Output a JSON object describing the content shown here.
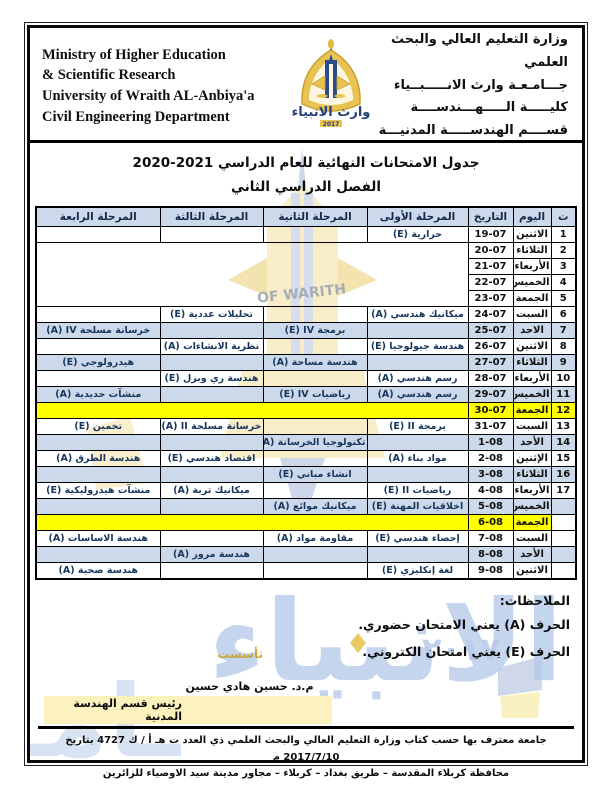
{
  "colors": {
    "row_blue": "#ccd9ea",
    "row_yellow": "#ffff00",
    "signature_highlight": "#fbf2bd",
    "subject_text_navy": "#17365d",
    "watermark_blue": "#b7cbea",
    "watermark_gold": "#f0d98e"
  },
  "header": {
    "english_lines": [
      "Ministry of Higher Education",
      "& Scientific Research",
      "University of Wraith AL-Anbiya'a",
      "Civil Engineering Department"
    ],
    "arabic_lines": [
      "وزارة التعليم العالي والبحث العلمي",
      "جـــامـعـة وارث الانـــــبــياء",
      "كليـــــة الـــــهـــندســــة",
      "قســــم الهندســـــة المدنيـــة"
    ],
    "logo_caption": "وارث الانبياء",
    "logo_year": "2017"
  },
  "title": {
    "line1": "جدول الامتحانات النهائية للعام الدراسي 2021-2020",
    "line2": "الفصل الدراسي الثاني"
  },
  "table": {
    "headers": [
      "ت",
      "اليوم",
      "التاريخ",
      "المرحلة الأولى",
      "المرحلة الثانية",
      "المرحلة الثالثة",
      "المرحلة الرابعة"
    ],
    "rows": [
      {
        "no": "1",
        "day": "الاثنين",
        "date": "19-07",
        "bg": "white",
        "cells": {
          "s1": {
            "n": "حرارية",
            "m": "E"
          }
        }
      },
      {
        "no": "2",
        "day": "الثلاثاء",
        "date": "20-07",
        "bg": "white",
        "span": "start"
      },
      {
        "no": "3",
        "day": "الأربعاء",
        "date": "21-07",
        "bg": "white",
        "span": "skip"
      },
      {
        "no": "4",
        "day": "الخميس",
        "date": "22-07",
        "bg": "white",
        "span": "skip"
      },
      {
        "no": "5",
        "day": "الجمعة",
        "date": "23-07",
        "bg": "white",
        "span": "skip"
      },
      {
        "no": "6",
        "day": "السبت",
        "date": "24-07",
        "bg": "white",
        "cells": {
          "s1": {
            "n": "ميكانيك هندسي",
            "m": "A"
          },
          "s3": {
            "n": "تحليلات عددية",
            "m": "E"
          }
        }
      },
      {
        "no": "7",
        "day": "الاحد",
        "date": "25-07",
        "bg": "blue",
        "cells": {
          "s2": {
            "n": "برمجة IV",
            "m": "E"
          },
          "s4": {
            "n": "خرسانة مسلحة IV",
            "m": "A"
          }
        }
      },
      {
        "no": "8",
        "day": "الاثنين",
        "date": "26-07",
        "bg": "white",
        "cells": {
          "s1": {
            "n": "هندسة جيولوجيا",
            "m": "E"
          },
          "s3": {
            "n": "نظرية الانشاءات",
            "m": "A"
          }
        }
      },
      {
        "no": "9",
        "day": "الثلاثاء",
        "date": "27-07",
        "bg": "blue",
        "cells": {
          "s2": {
            "n": "هندسة مساحة",
            "m": "A"
          },
          "s4": {
            "n": "هيدرولوجي",
            "m": "E"
          }
        }
      },
      {
        "no": "10",
        "day": "الأربعاء",
        "date": "28-07",
        "bg": "white",
        "cells": {
          "s1": {
            "n": "رسم هندسي",
            "m": "A"
          },
          "s3": {
            "n": "هندسة ري وبزل",
            "m": "E"
          }
        }
      },
      {
        "no": "11",
        "day": "الخميس",
        "date": "29-07",
        "bg": "blue",
        "cells": {
          "s1": {
            "n": "رسم هندسي",
            "m": "A"
          },
          "s2": {
            "n": "رياضيات IV",
            "m": "E"
          },
          "s4": {
            "n": "منشآت حديدية",
            "m": "A"
          }
        }
      },
      {
        "no": "12",
        "day": "الجمعة",
        "date": "30-07",
        "bg": "yellow"
      },
      {
        "no": "13",
        "day": "السبت",
        "date": "31-07",
        "bg": "white",
        "cells": {
          "s1": {
            "n": "برمجة II",
            "m": "E"
          },
          "s3": {
            "n": "خرسانة مسلحة II",
            "m": "A"
          },
          "s4": {
            "n": "تخمين",
            "m": "E"
          }
        }
      },
      {
        "no": "14",
        "day": "الأحد",
        "date": "1-08",
        "bg": "blue",
        "cells": {
          "s2": {
            "n": "تكنولوجيا الخرسانة",
            "m": "A"
          }
        }
      },
      {
        "no": "15",
        "day": "الإثنين",
        "date": "2-08",
        "bg": "white",
        "cells": {
          "s1": {
            "n": "مواد بناء",
            "m": "A"
          },
          "s3": {
            "n": "اقتصاد هندسي",
            "m": "E"
          },
          "s4": {
            "n": "هندسة الطرق",
            "m": "A"
          }
        }
      },
      {
        "no": "16",
        "day": "الثلاثاء",
        "date": "3-08",
        "bg": "blue",
        "cells": {
          "s2": {
            "n": "انشاء مباني",
            "m": "E"
          }
        }
      },
      {
        "no": "17",
        "day": "الأربعاء",
        "date": "4-08",
        "bg": "white",
        "cells": {
          "s1": {
            "n": "رياضيات II",
            "m": "E"
          },
          "s3": {
            "n": "ميكانيك تربة",
            "m": "A"
          },
          "s4": {
            "n": "منشآت هيدروليكية",
            "m": "E"
          }
        }
      },
      {
        "no": "",
        "day": "الخميس",
        "date": "5-08",
        "bg": "blue",
        "cells": {
          "s1": {
            "n": "اخلاقيات المهنة",
            "m": "E"
          },
          "s2": {
            "n": "ميكانيك موائع",
            "m": "A"
          }
        }
      },
      {
        "no": "",
        "day": "الجمعة",
        "date": "6-08",
        "bg": "yellow"
      },
      {
        "no": "",
        "day": "السبت",
        "date": "7-08",
        "bg": "white",
        "cells": {
          "s1": {
            "n": "إحصاء هندسي",
            "m": "E"
          },
          "s2": {
            "n": "مقاومة مواد",
            "m": "A"
          },
          "s4": {
            "n": "هندسة الاساسات",
            "m": "A"
          }
        }
      },
      {
        "no": "",
        "day": "الأحد",
        "date": "8-08",
        "bg": "blue",
        "cells": {
          "s3": {
            "n": "هندسة مرور",
            "m": "A"
          }
        }
      },
      {
        "no": "",
        "day": "الاثنين",
        "date": "9-08",
        "bg": "white",
        "cells": {
          "s1": {
            "n": "لغة إنكليزي",
            "m": "E"
          },
          "s4": {
            "n": "هندسة صحية",
            "m": "A"
          }
        }
      }
    ]
  },
  "notes": {
    "heading": "الملاحظات:",
    "line1": "الحرف (A) يعني الامتحان حضوري.",
    "line2": "الحرف (E) يعني امتحان الكتروني."
  },
  "signature": {
    "name": "م.د. حسين هادي حسين",
    "title": "رئيس قسم الهندسة المدنية"
  },
  "footer": {
    "line1": "جامعة معترف بها حسب كتاب وزارة التعليم العالي والبحث العلمي ذي العدد ت هـ أ / ك 4727 بتاريخ 2017/7/10 م",
    "line2": "محافظة كربلاء المقدسة – طريق بغداد – كربلاء – مجاور مدينة سيد الاوصياء للزائرين"
  },
  "watermark": {
    "big_text": "الانبياء",
    "partial_text": "ـامـ",
    "year_text": "٢٠١٧",
    "founded_text": "تأسست",
    "arc_text": "OF WARITH"
  }
}
